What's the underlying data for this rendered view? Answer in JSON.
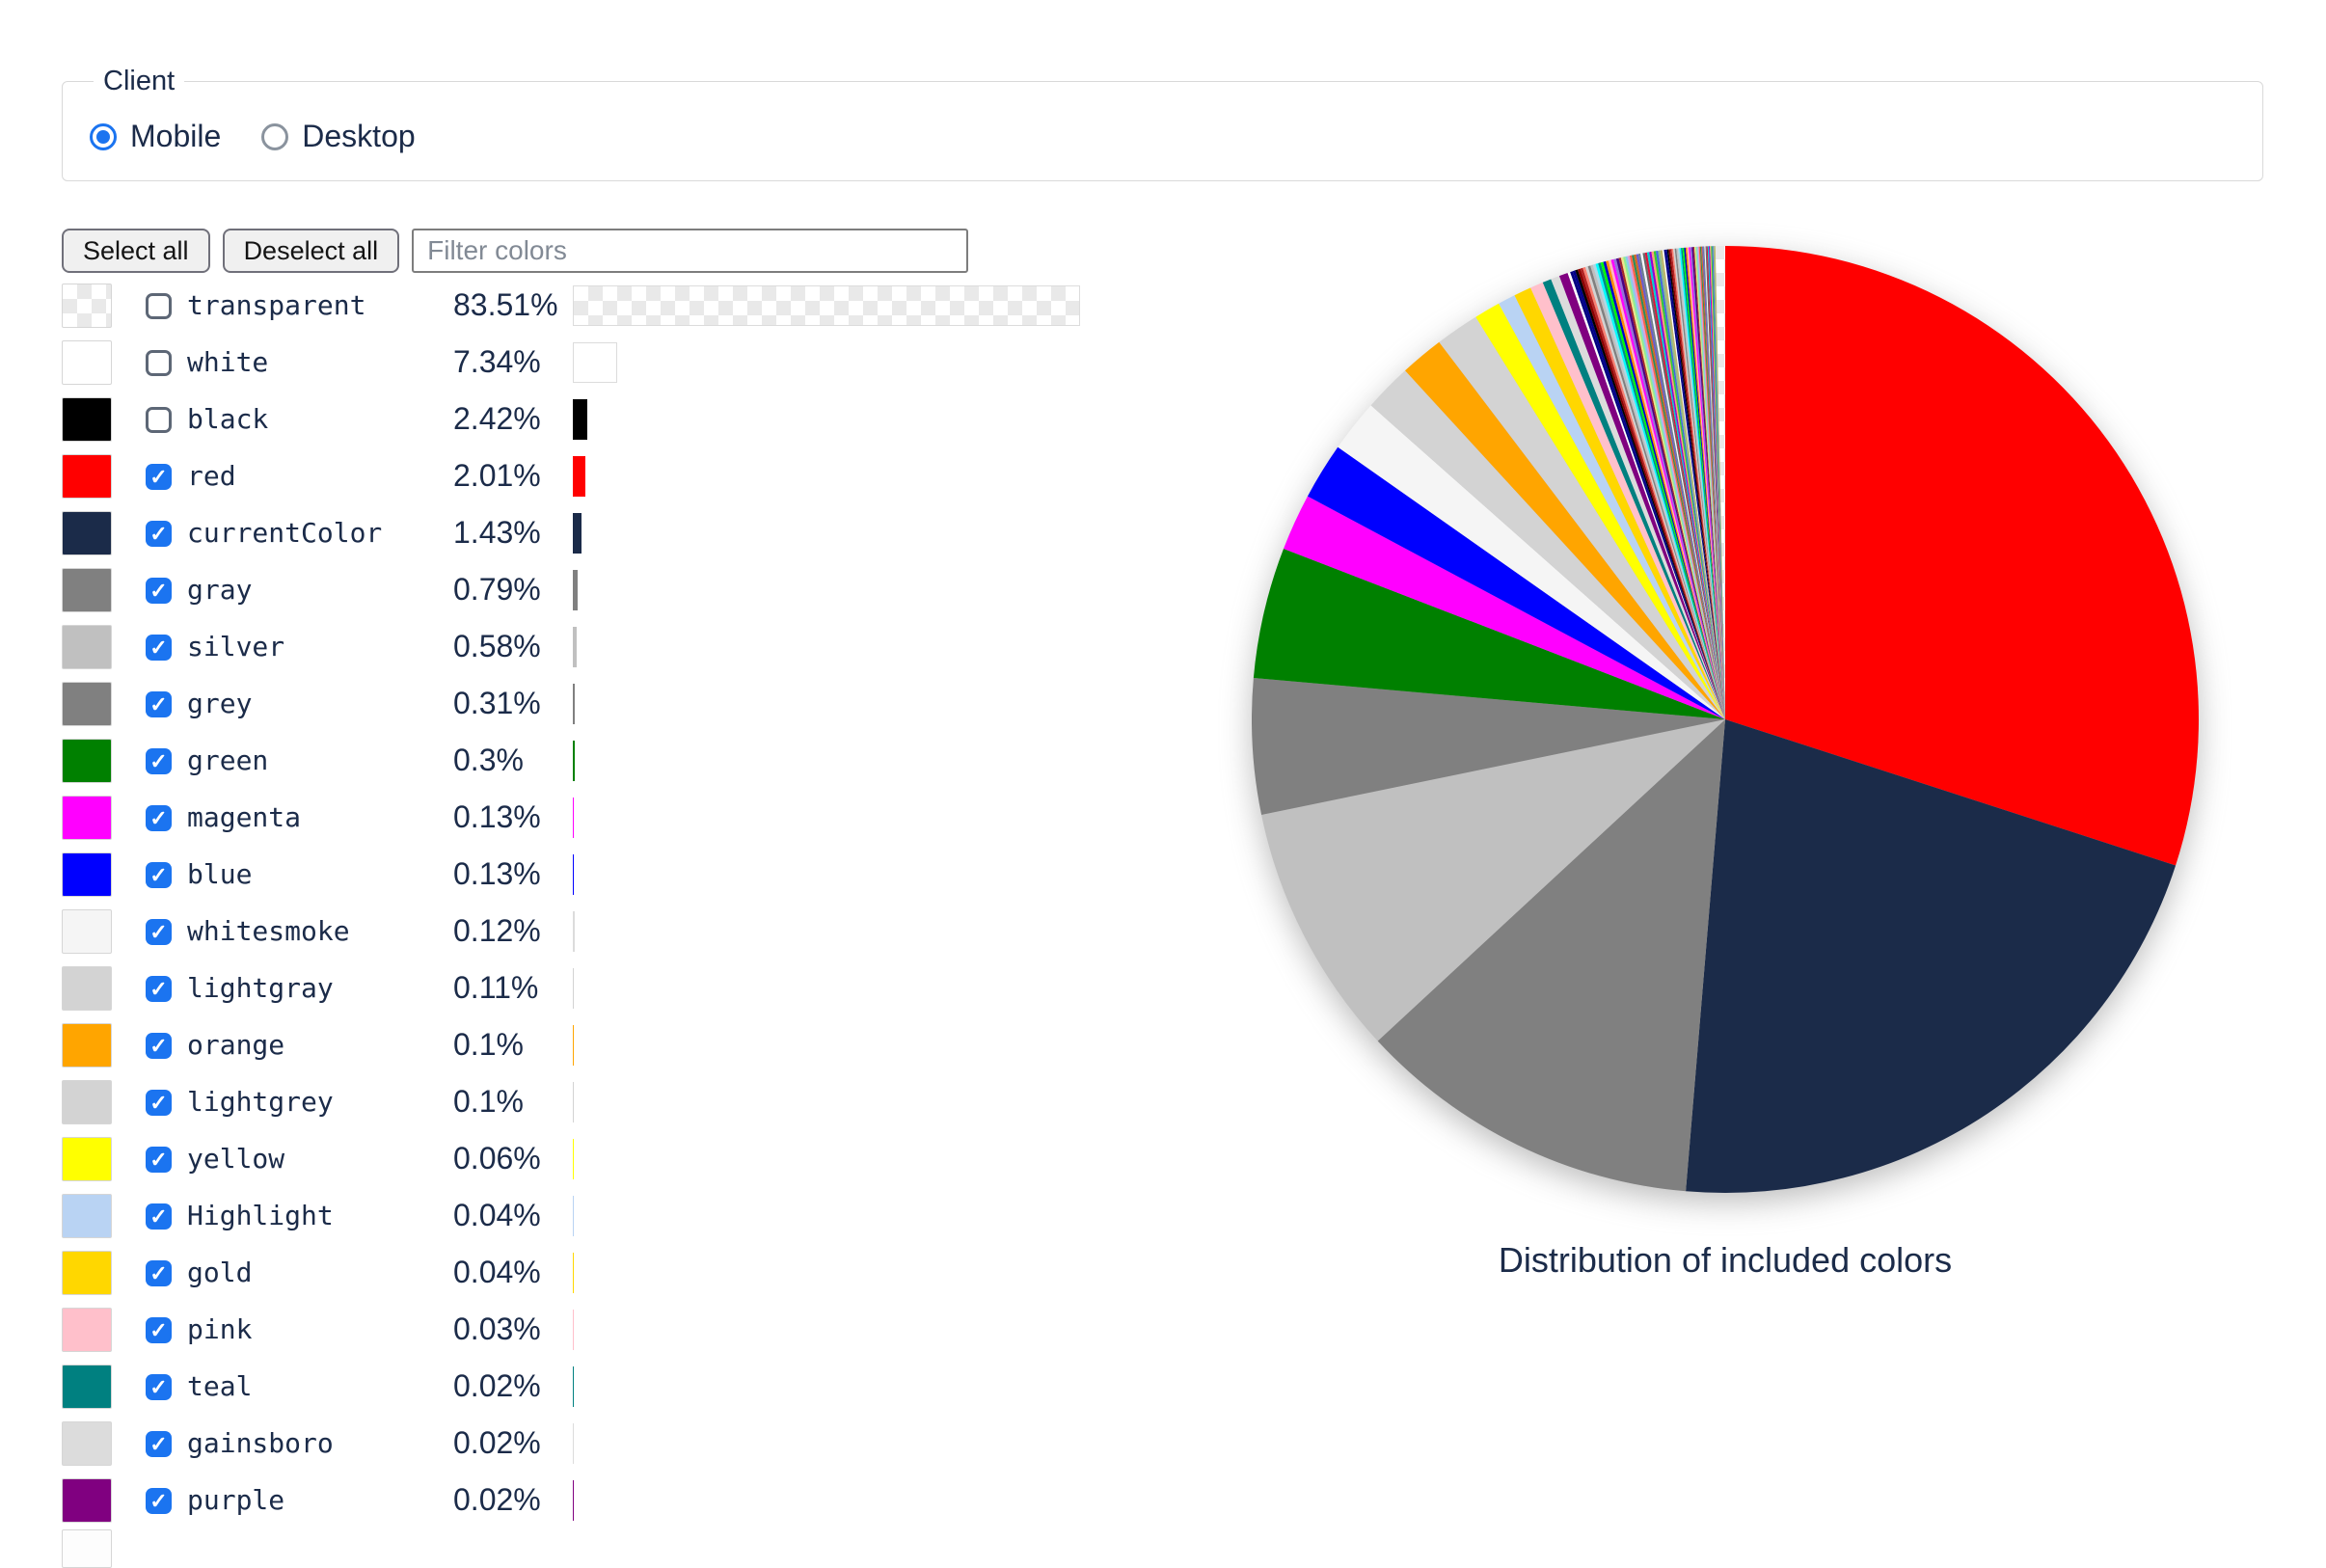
{
  "client_fieldset": {
    "legend": "Client",
    "options": [
      {
        "label": "Mobile",
        "selected": true
      },
      {
        "label": "Desktop",
        "selected": false
      }
    ]
  },
  "toolbar": {
    "select_all_label": "Select all",
    "deselect_all_label": "Deselect all",
    "filter_placeholder": "Filter colors"
  },
  "accent": {
    "checkbox_blue": "#1b74f0",
    "text_navy": "#1b2b49"
  },
  "color_list": {
    "rows": [
      {
        "name": "transparent",
        "percent_label": "83.51%",
        "percent": 83.51,
        "checked": false,
        "swatch": "checker"
      },
      {
        "name": "white",
        "percent_label": "7.34%",
        "percent": 7.34,
        "checked": false,
        "swatch": "#ffffff"
      },
      {
        "name": "black",
        "percent_label": "2.42%",
        "percent": 2.42,
        "checked": false,
        "swatch": "#000000"
      },
      {
        "name": "red",
        "percent_label": "2.01%",
        "percent": 2.01,
        "checked": true,
        "swatch": "#ff0000"
      },
      {
        "name": "currentColor",
        "percent_label": "1.43%",
        "percent": 1.43,
        "checked": true,
        "swatch": "#1b2b49"
      },
      {
        "name": "gray",
        "percent_label": "0.79%",
        "percent": 0.79,
        "checked": true,
        "swatch": "#808080"
      },
      {
        "name": "silver",
        "percent_label": "0.58%",
        "percent": 0.58,
        "checked": true,
        "swatch": "#c0c0c0"
      },
      {
        "name": "grey",
        "percent_label": "0.31%",
        "percent": 0.31,
        "checked": true,
        "swatch": "#808080"
      },
      {
        "name": "green",
        "percent_label": "0.3%",
        "percent": 0.3,
        "checked": true,
        "swatch": "#008000"
      },
      {
        "name": "magenta",
        "percent_label": "0.13%",
        "percent": 0.13,
        "checked": true,
        "swatch": "#ff00ff"
      },
      {
        "name": "blue",
        "percent_label": "0.13%",
        "percent": 0.13,
        "checked": true,
        "swatch": "#0000ff"
      },
      {
        "name": "whitesmoke",
        "percent_label": "0.12%",
        "percent": 0.12,
        "checked": true,
        "swatch": "#f5f5f5"
      },
      {
        "name": "lightgray",
        "percent_label": "0.11%",
        "percent": 0.11,
        "checked": true,
        "swatch": "#d3d3d3"
      },
      {
        "name": "orange",
        "percent_label": "0.1%",
        "percent": 0.1,
        "checked": true,
        "swatch": "#ffa500"
      },
      {
        "name": "lightgrey",
        "percent_label": "0.1%",
        "percent": 0.1,
        "checked": true,
        "swatch": "#d3d3d3"
      },
      {
        "name": "yellow",
        "percent_label": "0.06%",
        "percent": 0.06,
        "checked": true,
        "swatch": "#ffff00"
      },
      {
        "name": "Highlight",
        "percent_label": "0.04%",
        "percent": 0.04,
        "checked": true,
        "swatch": "#b9d3f3"
      },
      {
        "name": "gold",
        "percent_label": "0.04%",
        "percent": 0.04,
        "checked": true,
        "swatch": "#ffd700"
      },
      {
        "name": "pink",
        "percent_label": "0.03%",
        "percent": 0.03,
        "checked": true,
        "swatch": "#ffc0cb"
      },
      {
        "name": "teal",
        "percent_label": "0.02%",
        "percent": 0.02,
        "checked": true,
        "swatch": "#008080"
      },
      {
        "name": "gainsboro",
        "percent_label": "0.02%",
        "percent": 0.02,
        "checked": true,
        "swatch": "#dcdcdc"
      },
      {
        "name": "purple",
        "percent_label": "0.02%",
        "percent": 0.02,
        "checked": true,
        "swatch": "#800080"
      }
    ],
    "next_row_partially_visible": true
  },
  "chart_data": {
    "type": "pie",
    "title": "Distribution of included colors",
    "start_angle": "top",
    "direction": "clockwise",
    "slices": [
      {
        "name": "red",
        "value": 2.01,
        "color": "#ff0000"
      },
      {
        "name": "currentColor",
        "value": 1.43,
        "color": "#1b2b49"
      },
      {
        "name": "gray",
        "value": 0.79,
        "color": "#808080"
      },
      {
        "name": "silver",
        "value": 0.58,
        "color": "#c0c0c0"
      },
      {
        "name": "grey",
        "value": 0.31,
        "color": "#808080"
      },
      {
        "name": "green",
        "value": 0.3,
        "color": "#008000"
      },
      {
        "name": "magenta",
        "value": 0.13,
        "color": "#ff00ff"
      },
      {
        "name": "blue",
        "value": 0.13,
        "color": "#0000ff"
      },
      {
        "name": "whitesmoke",
        "value": 0.12,
        "color": "#f5f5f5"
      },
      {
        "name": "lightgray",
        "value": 0.11,
        "color": "#d3d3d3"
      },
      {
        "name": "orange",
        "value": 0.1,
        "color": "#ffa500"
      },
      {
        "name": "lightgrey",
        "value": 0.1,
        "color": "#d3d3d3"
      },
      {
        "name": "yellow",
        "value": 0.06,
        "color": "#ffff00"
      },
      {
        "name": "Highlight",
        "value": 0.04,
        "color": "#b9d3f3"
      },
      {
        "name": "gold",
        "value": 0.04,
        "color": "#ffd700"
      },
      {
        "name": "pink",
        "value": 0.03,
        "color": "#ffc0cb"
      },
      {
        "name": "teal",
        "value": 0.02,
        "color": "#008080"
      },
      {
        "name": "gainsboro",
        "value": 0.02,
        "color": "#dcdcdc"
      },
      {
        "name": "purple",
        "value": 0.02,
        "color": "#800080"
      }
    ],
    "unlabeled_tail": {
      "comment": "dense fan of tiny unlabeled slices between purple and 12 o'clock",
      "colors": [
        "#ffffff",
        "#000080",
        "#00008b",
        "#000000",
        "#8b0000",
        "#b22222",
        "#fa8072",
        "#d3d3d3",
        "#808080",
        "#c0c0c0",
        "#add8e6",
        "#00ffff",
        "#008b8b",
        "#00ff00",
        "#0000cd",
        "#ff8c00",
        "#ffb6c1",
        "#ff00ff",
        "#9370db",
        "#4b0082",
        "#a52a2a",
        "#f0e68c",
        "#90ee90",
        "#87ceeb",
        "#dda0dd",
        "#ff6347",
        "#2e8b57",
        "#d2691e",
        "#6a5acd",
        "#708090",
        "#f8f8ff",
        "#696969",
        "#dc143c",
        "#00ced1",
        "#9400d3",
        "#ffa07a",
        "#32cd32",
        "#4169e1",
        "#8fbc8f",
        "#bdb76b"
      ],
      "counts": [
        20,
        20,
        20,
        20
      ],
      "values": [
        0.006,
        0.005,
        0.0035,
        0.0025
      ]
    },
    "checker_slice_value": 0.022
  }
}
